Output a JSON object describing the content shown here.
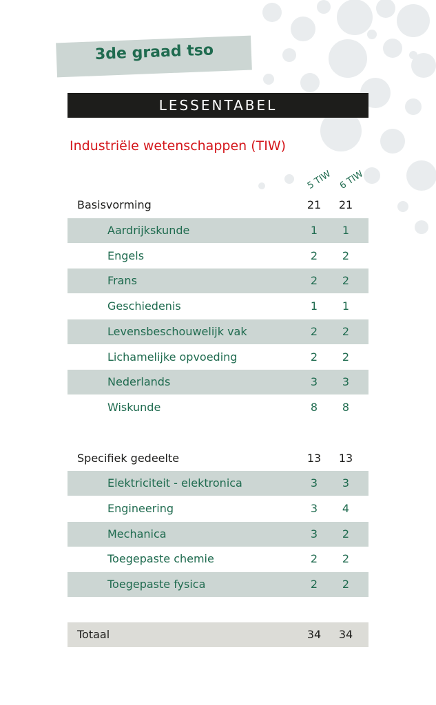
{
  "header": {
    "grade": "3de graad tso",
    "title": "LESSENTABEL",
    "subtitle": "Industriële wetenschappen (TIW)"
  },
  "columns": [
    "5 TIW",
    "6 TIW"
  ],
  "rows": [
    {
      "type": "section",
      "label": "Basisvorming",
      "v1": "21",
      "v2": "21"
    },
    {
      "type": "item",
      "label": "Aardrijkskunde",
      "v1": "1",
      "v2": "1"
    },
    {
      "type": "item",
      "label": "Engels",
      "v1": "2",
      "v2": "2"
    },
    {
      "type": "item",
      "label": "Frans",
      "v1": "2",
      "v2": "2"
    },
    {
      "type": "item",
      "label": "Geschiedenis",
      "v1": "1",
      "v2": "1"
    },
    {
      "type": "item",
      "label": "Levensbeschouwelijk vak",
      "v1": "2",
      "v2": "2"
    },
    {
      "type": "item",
      "label": "Lichamelijke opvoeding",
      "v1": "2",
      "v2": "2"
    },
    {
      "type": "item",
      "label": "Nederlands",
      "v1": "3",
      "v2": "3"
    },
    {
      "type": "item",
      "label": "Wiskunde",
      "v1": "8",
      "v2": "8"
    },
    {
      "type": "section",
      "label": "Specifiek gedeelte",
      "v1": "13",
      "v2": "13"
    },
    {
      "type": "item",
      "label": "Elektriciteit - elektronica",
      "v1": "3",
      "v2": "3"
    },
    {
      "type": "item",
      "label": "Engineering",
      "v1": "3",
      "v2": "4"
    },
    {
      "type": "item",
      "label": "Mechanica",
      "v1": "3",
      "v2": "2"
    },
    {
      "type": "item",
      "label": "Toegepaste chemie",
      "v1": "2",
      "v2": "2"
    },
    {
      "type": "item",
      "label": "Toegepaste fysica",
      "v1": "2",
      "v2": "2"
    },
    {
      "type": "total",
      "label": "Totaal",
      "v1": "34",
      "v2": "34"
    }
  ],
  "colors": {
    "accent_green": "#1f6b4f",
    "row_shade": "#ccd6d3",
    "title_bar": "#1d1d1b",
    "subtitle_red": "#d4161b",
    "decor_dots": "#e9ecee"
  }
}
